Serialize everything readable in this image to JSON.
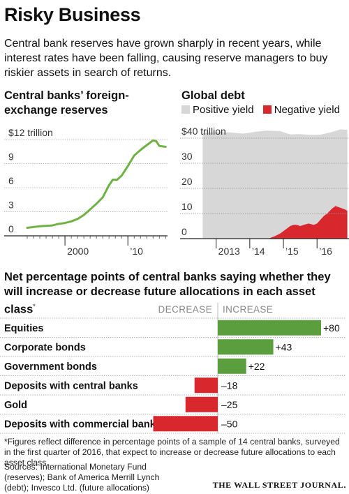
{
  "title": "Risky Business",
  "subtitle": "Central bank reserves have grown sharply in recent years, while interest rates have been falling, causing reserve managers to buy riskier assets in search of returns.",
  "footnote": "*Figures reflect difference in percentage points of a sample of 14 central banks, surveyed in the first quarter of 2016, that expect to increase or decrease future allocations to each asset class.",
  "sources": "Sources: International Monetary Fund (reserves); Bank of America Merrill Lynch (debt); Invesco Ltd. (future allocations)",
  "publisher": "THE WALL STREET JOURNAL.",
  "colors": {
    "green": "#5a9e3d",
    "red": "#d9272e",
    "gray": "#d7d7d7",
    "line": "#6fb243"
  },
  "chart_data": [
    {
      "type": "line",
      "title": "Central banks’ foreign-exchange reserves",
      "y_unit_label": "$12 trillion",
      "yticks": [
        "$12 trillion",
        "9",
        "6",
        "3",
        "0"
      ],
      "ytick_values": [
        12,
        9,
        6,
        3,
        0
      ],
      "xticks": [
        "2000",
        "’10"
      ],
      "xtick_values": [
        2000,
        2010
      ],
      "xlim": [
        1993,
        2016.3
      ],
      "ylim": [
        0,
        12
      ],
      "series": [
        {
          "x": [
            1994,
            1995,
            1996,
            1997,
            1998,
            1999,
            2000,
            2001,
            2002,
            2003,
            2004,
            2005,
            2006,
            2007,
            2007.6,
            2008.3,
            2009,
            2010,
            2011,
            2012,
            2013,
            2014,
            2014.5,
            2015,
            2016
          ],
          "values": [
            1.0,
            1.1,
            1.2,
            1.25,
            1.3,
            1.5,
            1.6,
            1.8,
            2.1,
            2.6,
            3.3,
            4.0,
            4.8,
            6.3,
            7.0,
            7.0,
            7.5,
            8.7,
            10.0,
            10.7,
            11.3,
            11.9,
            11.8,
            11.2,
            11.1
          ]
        }
      ]
    },
    {
      "type": "area",
      "title": "Global debt",
      "y_unit_label": "$40 trillion",
      "yticks": [
        "$40 trillion",
        "30",
        "20",
        "10",
        "0"
      ],
      "ytick_values": [
        40,
        30,
        20,
        10,
        0
      ],
      "xticks": [
        "2013",
        "’14",
        "’15",
        "’16"
      ],
      "xtick_values": [
        2013,
        2014,
        2015,
        2016
      ],
      "xlim": [
        2012.55,
        2016.95
      ],
      "ylim": [
        0,
        40
      ],
      "legend": [
        "Positive yield",
        "Negative yield"
      ],
      "series": [
        {
          "name": "Positive yield",
          "x": [
            2012.6,
            2013.0,
            2013.4,
            2013.8,
            2014.2,
            2014.5,
            2014.9,
            2015.2,
            2015.5,
            2015.8,
            2016.1,
            2016.4,
            2016.7,
            2016.9
          ],
          "values": [
            42.0,
            42.4,
            42.3,
            41.8,
            42.6,
            43.0,
            42.8,
            41.5,
            41.6,
            41.3,
            41.4,
            42.3,
            43.5,
            43.3
          ]
        },
        {
          "name": "Negative yield",
          "x": [
            2014.55,
            2014.65,
            2014.75,
            2014.9,
            2015.0,
            2015.1,
            2015.2,
            2015.3,
            2015.4,
            2015.5,
            2015.6,
            2015.75,
            2015.9,
            2016.0,
            2016.1,
            2016.2,
            2016.3,
            2016.45,
            2016.55,
            2016.65,
            2016.75,
            2016.85,
            2016.9
          ],
          "values": [
            0.0,
            0.5,
            1.0,
            2.0,
            3.0,
            4.0,
            5.0,
            5.5,
            5.5,
            5.0,
            5.5,
            6.0,
            5.5,
            6.0,
            7.5,
            9.0,
            10.0,
            12.0,
            13.0,
            12.5,
            12.0,
            11.5,
            11.0
          ]
        }
      ]
    },
    {
      "type": "bar",
      "orientation": "horizontal",
      "title": "Net percentage points of central banks saying whether they will increase or decrease future allocations in each asset class",
      "title_note": "*",
      "header_left": "DECREASE",
      "header_right": "INCREASE",
      "categories": [
        "Equities",
        "Corporate bonds",
        "Government bonds",
        "Deposits with central banks",
        "Gold",
        "Deposits with commercial banks"
      ],
      "values": [
        80,
        43,
        22,
        -18,
        -25,
        -50
      ],
      "labels": [
        "+80",
        "+43",
        "+22",
        "–18",
        "–25",
        "–50"
      ],
      "xlim": [
        -50,
        80
      ]
    }
  ]
}
